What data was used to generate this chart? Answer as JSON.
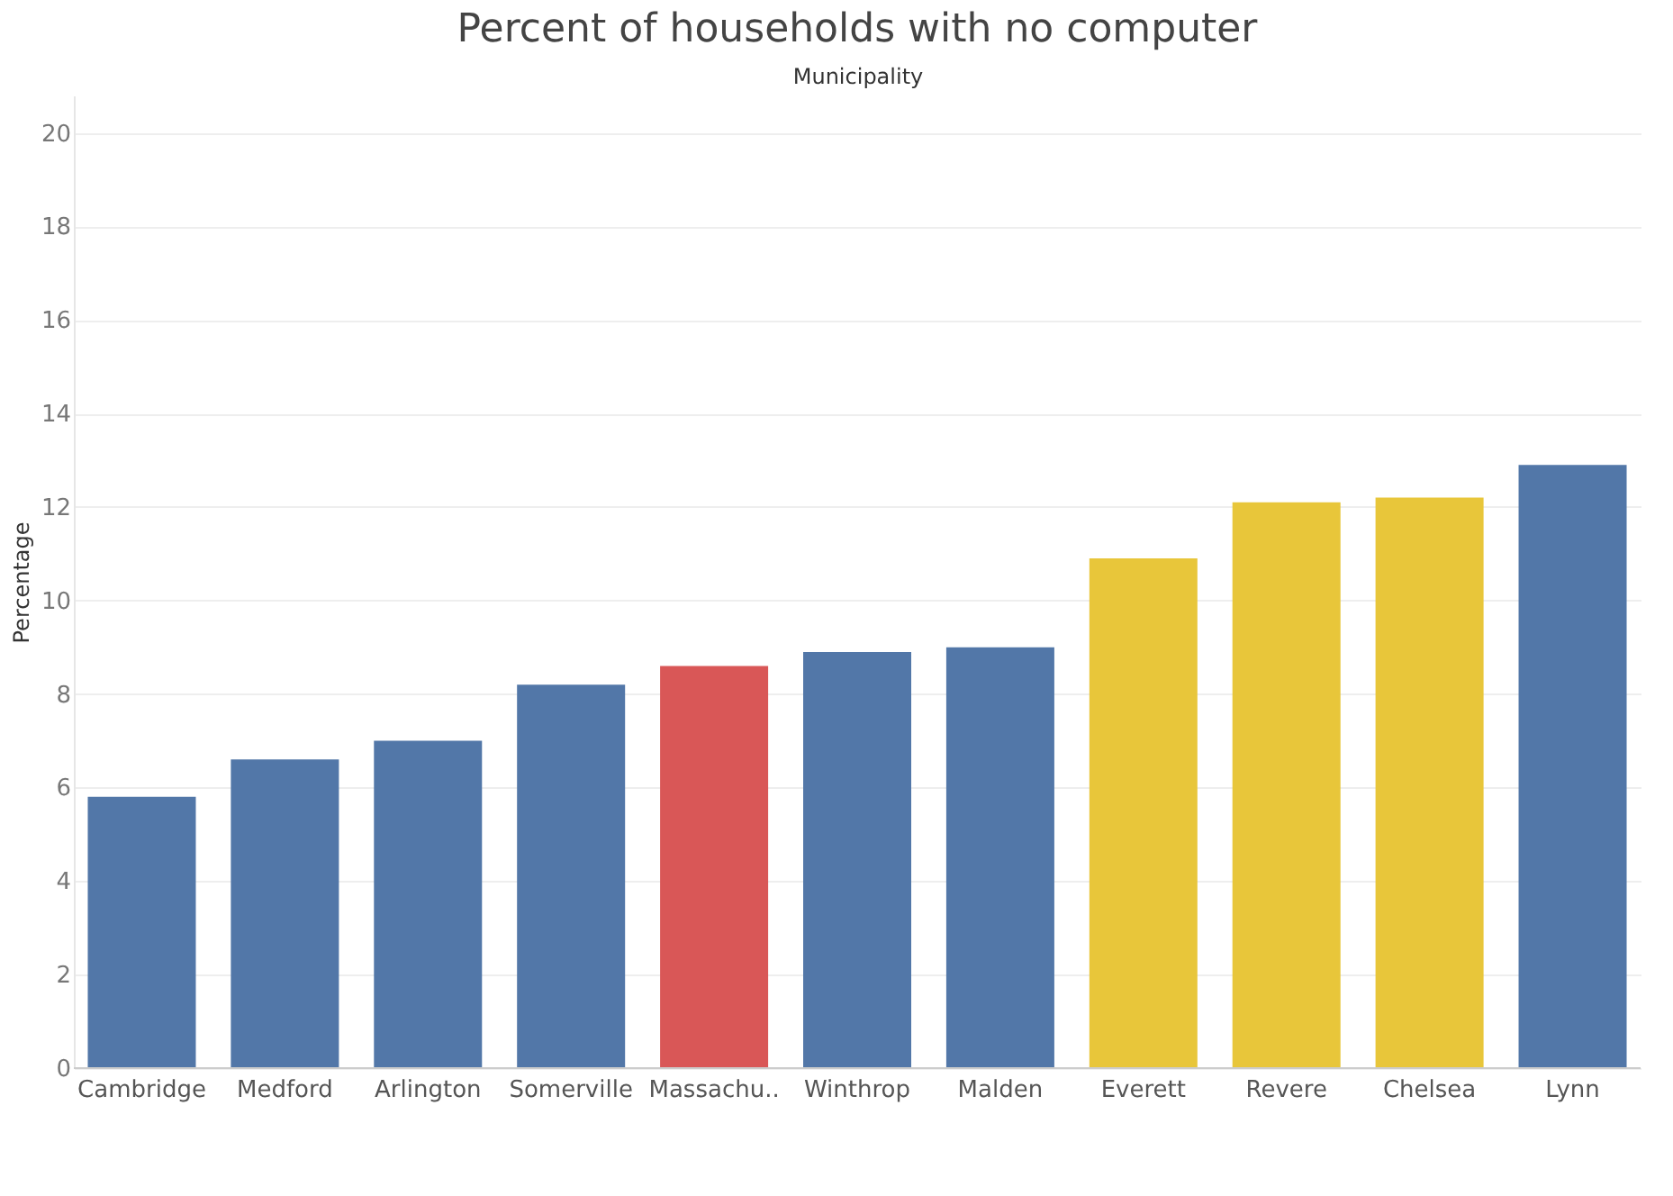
{
  "chart_data": {
    "type": "bar",
    "title": "Percent of households with no computer",
    "xlabel": "Municipality",
    "ylabel": "Percentage",
    "categories": [
      "Cambridge",
      "Medford",
      "Arlington",
      "Somerville",
      "Massachu..",
      "Winthrop",
      "Malden",
      "Everett",
      "Revere",
      "Chelsea",
      "Lynn"
    ],
    "values": [
      5.8,
      6.6,
      7.0,
      8.2,
      8.6,
      8.9,
      9.0,
      10.9,
      12.1,
      12.2,
      12.9
    ],
    "colors": [
      "#5277a8",
      "#5277a8",
      "#5277a8",
      "#5277a8",
      "#d95757",
      "#5277a8",
      "#5277a8",
      "#e8c63a",
      "#e8c63a",
      "#e8c63a",
      "#5277a8"
    ],
    "ylim": [
      0,
      20.8
    ],
    "yticks": [
      0,
      2,
      4,
      6,
      8,
      10,
      12,
      14,
      16,
      18,
      20
    ],
    "grid": "y"
  }
}
